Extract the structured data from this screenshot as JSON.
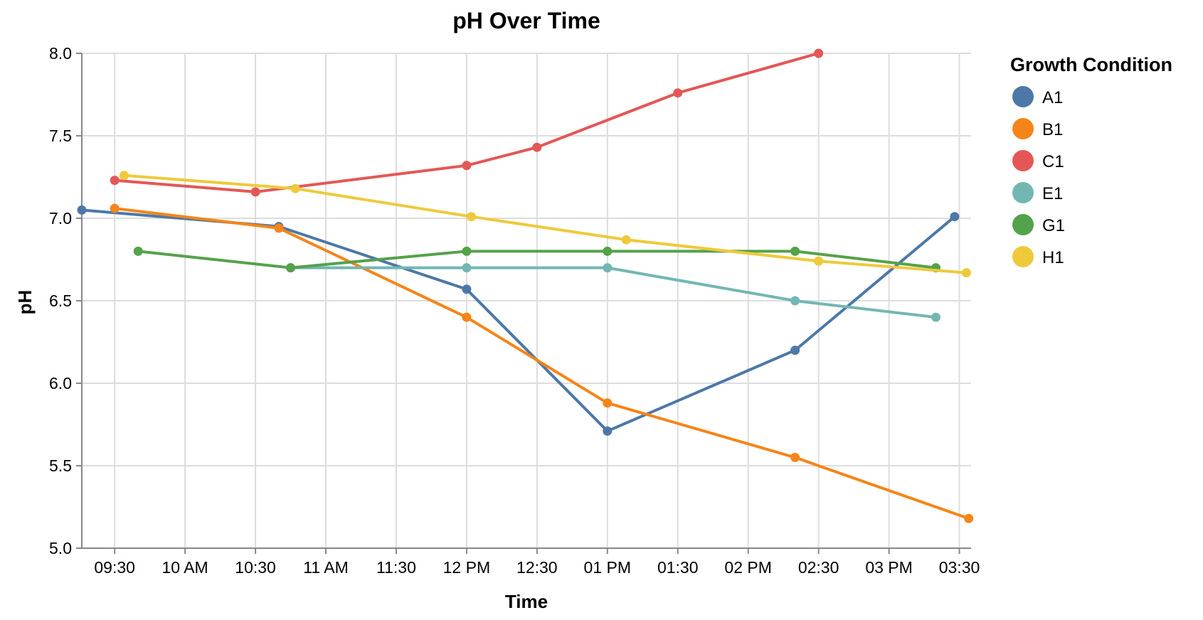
{
  "chart_data": {
    "type": "line",
    "title": "pH Over Time",
    "xlabel": "Time",
    "ylabel": "pH",
    "xlim": [
      "09:16",
      "15:35"
    ],
    "ylim": [
      5.0,
      8.0
    ],
    "x_ticks": [
      {
        "t": "09:30",
        "label": "09:30"
      },
      {
        "t": "10:00",
        "label": "10 AM"
      },
      {
        "t": "10:30",
        "label": "10:30"
      },
      {
        "t": "11:00",
        "label": "11 AM"
      },
      {
        "t": "11:30",
        "label": "11:30"
      },
      {
        "t": "12:00",
        "label": "12 PM"
      },
      {
        "t": "12:30",
        "label": "12:30"
      },
      {
        "t": "13:00",
        "label": "01 PM"
      },
      {
        "t": "13:30",
        "label": "01:30"
      },
      {
        "t": "14:00",
        "label": "02 PM"
      },
      {
        "t": "14:30",
        "label": "02:30"
      },
      {
        "t": "15:00",
        "label": "03 PM"
      },
      {
        "t": "15:30",
        "label": "03:30"
      }
    ],
    "y_ticks": [
      "5.0",
      "5.5",
      "6.0",
      "6.5",
      "7.0",
      "7.5",
      "8.0"
    ],
    "grid": true,
    "legend": {
      "title": "Growth Condition",
      "position": "right"
    },
    "series": [
      {
        "name": "A1",
        "color": "#4c78a8",
        "points": [
          {
            "x": "09:16",
            "y": 7.05
          },
          {
            "x": "10:40",
            "y": 6.95
          },
          {
            "x": "12:00",
            "y": 6.57
          },
          {
            "x": "13:00",
            "y": 5.71
          },
          {
            "x": "14:20",
            "y": 6.2
          },
          {
            "x": "15:28",
            "y": 7.01
          }
        ]
      },
      {
        "name": "B1",
        "color": "#f58518",
        "points": [
          {
            "x": "09:30",
            "y": 7.06
          },
          {
            "x": "10:40",
            "y": 6.94
          },
          {
            "x": "12:00",
            "y": 6.4
          },
          {
            "x": "13:00",
            "y": 5.88
          },
          {
            "x": "14:20",
            "y": 5.55
          },
          {
            "x": "15:34",
            "y": 5.18
          }
        ]
      },
      {
        "name": "C1",
        "color": "#e45756",
        "points": [
          {
            "x": "09:30",
            "y": 7.23
          },
          {
            "x": "10:30",
            "y": 7.16
          },
          {
            "x": "12:00",
            "y": 7.32
          },
          {
            "x": "12:30",
            "y": 7.43
          },
          {
            "x": "13:30",
            "y": 7.76
          },
          {
            "x": "14:30",
            "y": 8.0
          }
        ]
      },
      {
        "name": "E1",
        "color": "#72b7b2",
        "points": [
          {
            "x": "10:45",
            "y": 6.7
          },
          {
            "x": "12:00",
            "y": 6.7
          },
          {
            "x": "13:00",
            "y": 6.7
          },
          {
            "x": "14:20",
            "y": 6.5
          },
          {
            "x": "15:20",
            "y": 6.4
          }
        ]
      },
      {
        "name": "G1",
        "color": "#54a24b",
        "points": [
          {
            "x": "09:40",
            "y": 6.8
          },
          {
            "x": "10:45",
            "y": 6.7
          },
          {
            "x": "12:00",
            "y": 6.8
          },
          {
            "x": "13:00",
            "y": 6.8
          },
          {
            "x": "14:20",
            "y": 6.8
          },
          {
            "x": "15:20",
            "y": 6.7
          }
        ]
      },
      {
        "name": "H1",
        "color": "#eeca3b",
        "points": [
          {
            "x": "09:34",
            "y": 7.26
          },
          {
            "x": "10:47",
            "y": 7.18
          },
          {
            "x": "12:02",
            "y": 7.01
          },
          {
            "x": "13:08",
            "y": 6.87
          },
          {
            "x": "14:30",
            "y": 6.74
          },
          {
            "x": "15:33",
            "y": 6.67
          }
        ]
      }
    ]
  }
}
